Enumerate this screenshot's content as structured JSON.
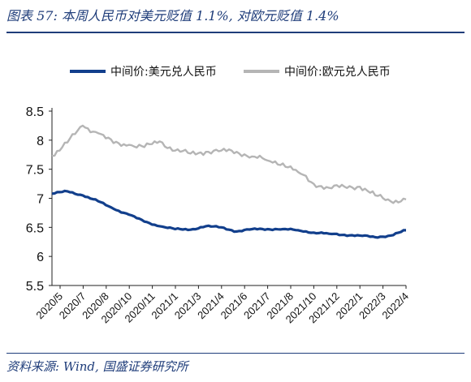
{
  "title": "图表 57:  本周人民币对美元贬值 1.1%, 对欧元贬值 1.4%",
  "source": "资料来源: Wind, 国盛证券研究所",
  "colors": {
    "usd": "#123f8c",
    "eur": "#b5b5b5",
    "title": "#1f3d7a",
    "axis": "#222222"
  },
  "chart_data": {
    "type": "line",
    "title": "",
    "xlabel": "",
    "ylabel": "",
    "ylim": [
      5.5,
      8.5
    ],
    "yticks": [
      "8.5",
      "8",
      "7.5",
      "7",
      "6.5",
      "6",
      "5.5"
    ],
    "ytick_values": [
      8.5,
      8,
      7.5,
      7,
      6.5,
      6,
      5.5
    ],
    "xticks": [
      "2020/5",
      "2020/7",
      "2020/8",
      "2020/10",
      "2020/11",
      "2021/1",
      "2021/3",
      "2021/4",
      "2021/6",
      "2021/7",
      "2021/8",
      "2021/10",
      "2021/12",
      "2022/1",
      "2022/3",
      "2022/4"
    ],
    "grid": false,
    "legend_position": "top",
    "x": [
      "2020/5",
      "2020/6",
      "2020/7",
      "2020/8",
      "2020/9",
      "2020/10",
      "2020/11",
      "2020/12",
      "2021/1",
      "2021/2",
      "2021/3",
      "2021/4",
      "2021/5",
      "2021/6",
      "2021/7",
      "2021/8",
      "2021/9",
      "2021/10",
      "2021/11",
      "2021/12",
      "2022/1",
      "2022/2",
      "2022/3",
      "2022/4"
    ],
    "series": [
      {
        "name": "中间价:美元兑人民币",
        "values": [
          7.08,
          7.12,
          7.05,
          6.95,
          6.82,
          6.72,
          6.6,
          6.52,
          6.47,
          6.46,
          6.52,
          6.5,
          6.43,
          6.47,
          6.47,
          6.47,
          6.45,
          6.41,
          6.39,
          6.37,
          6.36,
          6.33,
          6.36,
          6.45
        ]
      },
      {
        "name": "中间价:欧元兑人民币",
        "values": [
          7.73,
          7.96,
          8.25,
          8.12,
          7.95,
          7.92,
          7.88,
          7.98,
          7.82,
          7.77,
          7.8,
          7.82,
          7.8,
          7.72,
          7.65,
          7.6,
          7.45,
          7.25,
          7.18,
          7.2,
          7.2,
          7.05,
          6.95,
          6.98
        ]
      }
    ]
  }
}
